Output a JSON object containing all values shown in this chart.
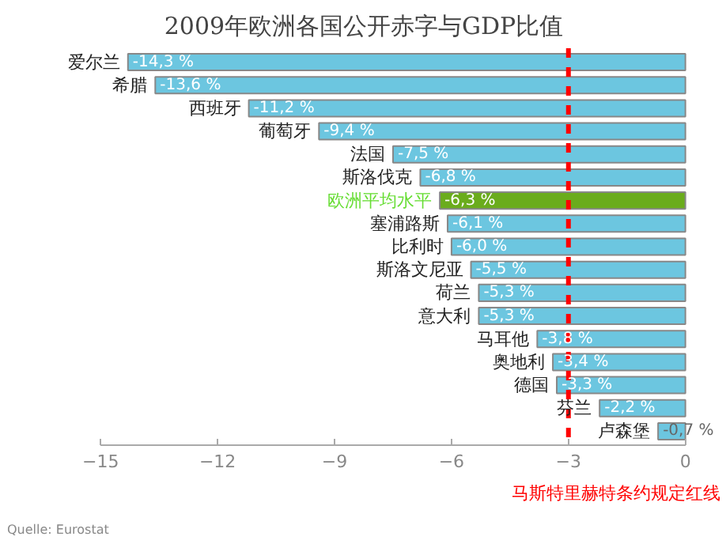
{
  "chart_data": {
    "type": "bar",
    "orientation": "horizontal",
    "title": "2009年欧洲各国公开赤字与GDP比值",
    "categories": [
      "爱尔兰",
      "希腊",
      "西班牙",
      "葡萄牙",
      "法国",
      "斯洛伐克",
      "欧洲平均水平",
      "塞浦路斯",
      "比利时",
      "斯洛文尼亚",
      "荷兰",
      "意大利",
      "马耳他",
      "奥地利",
      "德国",
      "芬兰",
      "卢森堡"
    ],
    "values": [
      -14.3,
      -13.6,
      -11.2,
      -9.4,
      -7.5,
      -6.8,
      -6.3,
      -6.1,
      -6.0,
      -5.5,
      -5.3,
      -5.3,
      -3.8,
      -3.4,
      -3.3,
      -2.2,
      -0.7
    ],
    "value_labels": [
      "-14,3 %",
      "-13,6 %",
      "-11,2 %",
      "-9,4 %",
      "-7,5 %",
      "-6,8 %",
      "-6,3 %",
      "-6,1 %",
      "-6,0 %",
      "-5,5 %",
      "-5,3 %",
      "-5,3 %",
      "-3,8 %",
      "-3,4 %",
      "-3,3 %",
      "-2,2 %",
      "-0,7 %"
    ],
    "colors": [
      "#6cc6e0",
      "#6cc6e0",
      "#6cc6e0",
      "#6cc6e0",
      "#6cc6e0",
      "#6cc6e0",
      "#6aac1c",
      "#6cc6e0",
      "#6cc6e0",
      "#6cc6e0",
      "#6cc6e0",
      "#6cc6e0",
      "#6cc6e0",
      "#6cc6e0",
      "#6cc6e0",
      "#6cc6e0",
      "#6cc6e0"
    ],
    "xlim": [
      -15,
      0
    ],
    "xticks": [
      -15,
      -12,
      -9,
      -6,
      -3,
      0
    ],
    "grid": false,
    "ref_lines": [
      {
        "axis": "x",
        "value": -3,
        "label": "马斯特里赫特条约规定红线",
        "color": "#ff0000",
        "line_style": "dashed"
      }
    ],
    "annotations": [
      "Quelle: Eurostat"
    ]
  }
}
